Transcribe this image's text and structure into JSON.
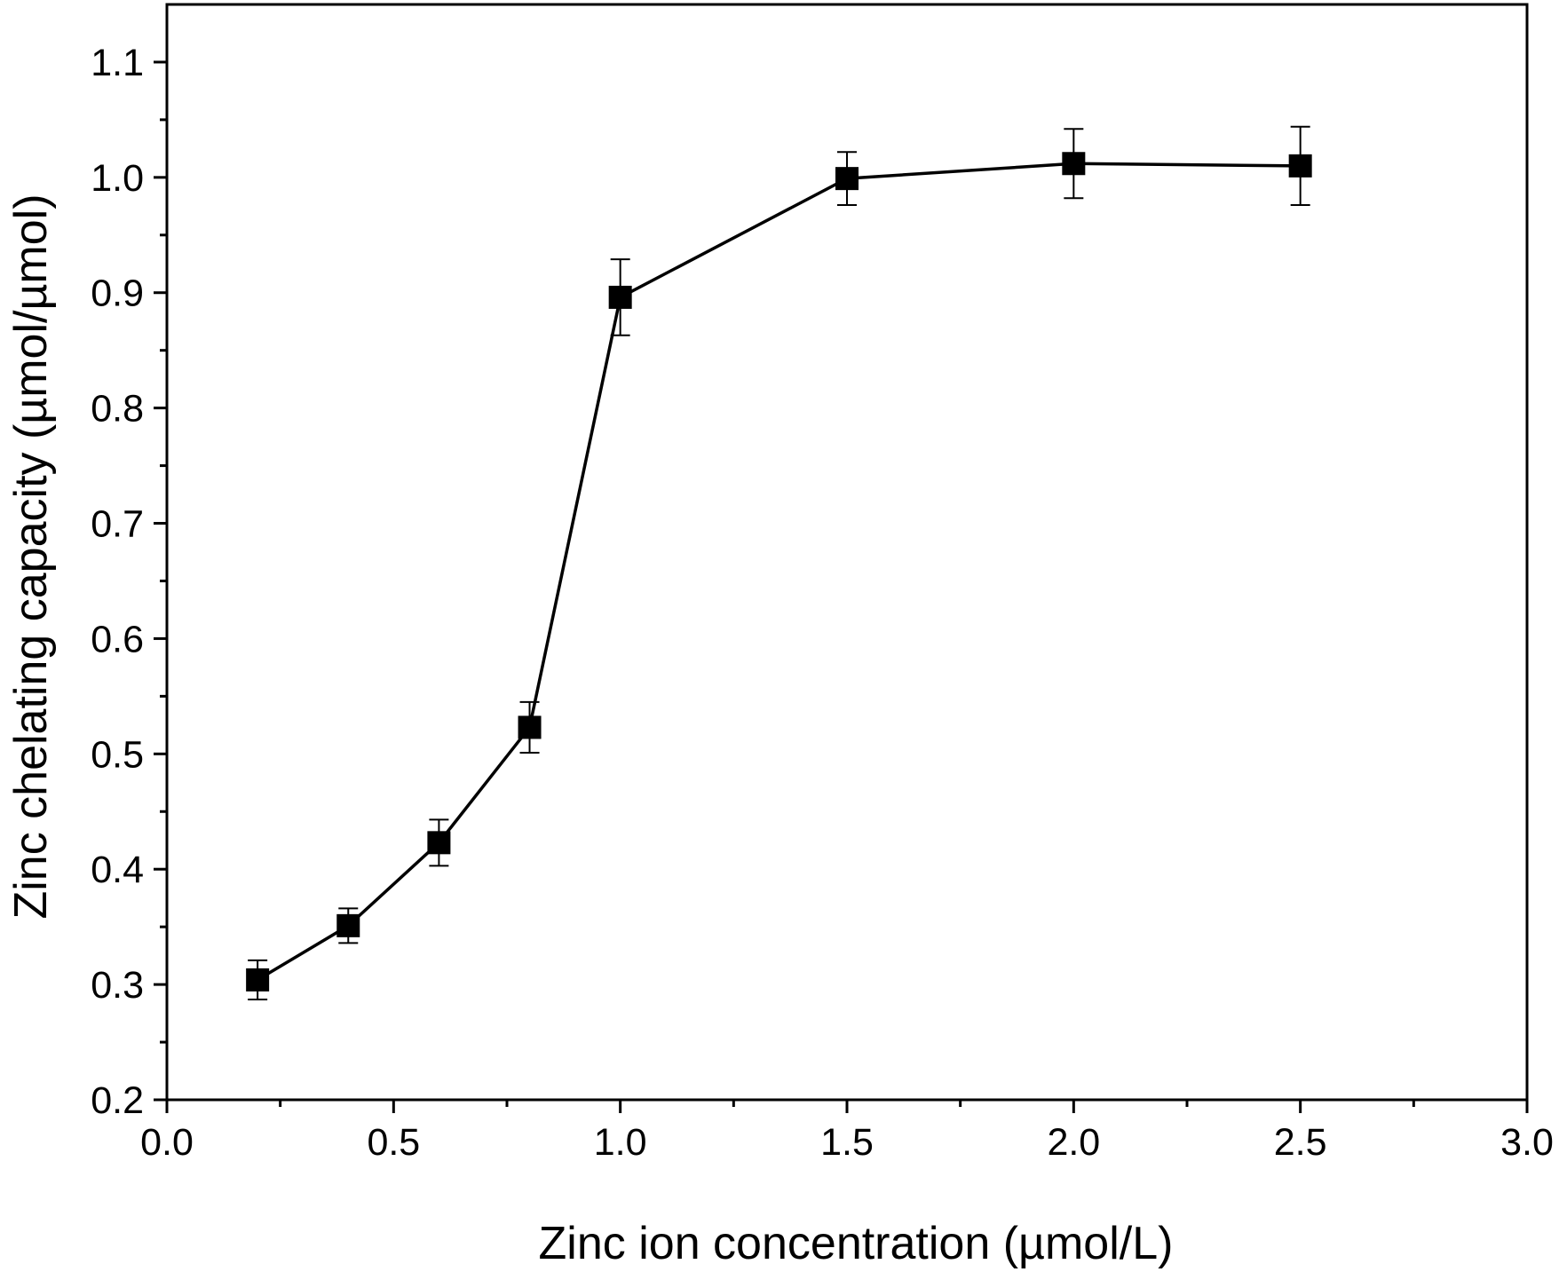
{
  "chart_data": {
    "type": "line",
    "title": "",
    "xlabel": "Zinc ion concentration (µmol/L)",
    "ylabel": "Zinc chelating capacity (µmol/µmol)",
    "xlim": [
      0.0,
      3.0
    ],
    "ylim": [
      0.2,
      1.15
    ],
    "x_ticks": [
      "0.0",
      "0.5",
      "1.0",
      "1.5",
      "2.0",
      "2.5",
      "3.0"
    ],
    "y_ticks": [
      "0.2",
      "0.3",
      "0.4",
      "0.5",
      "0.6",
      "0.7",
      "0.8",
      "0.9",
      "1.0",
      "1.1"
    ],
    "x_minor_step": 0.25,
    "y_minor_step": 0.05,
    "grid": false,
    "legend": "none",
    "marker": "square",
    "color": "#000000",
    "series": [
      {
        "x": [
          0.2,
          0.4,
          0.6,
          0.8,
          1.0,
          1.5,
          2.0,
          2.5
        ],
        "y": [
          0.304,
          0.351,
          0.423,
          0.523,
          0.896,
          0.999,
          1.012,
          1.01
        ],
        "error": [
          0.017,
          0.015,
          0.02,
          0.022,
          0.033,
          0.023,
          0.03,
          0.034
        ]
      }
    ]
  }
}
